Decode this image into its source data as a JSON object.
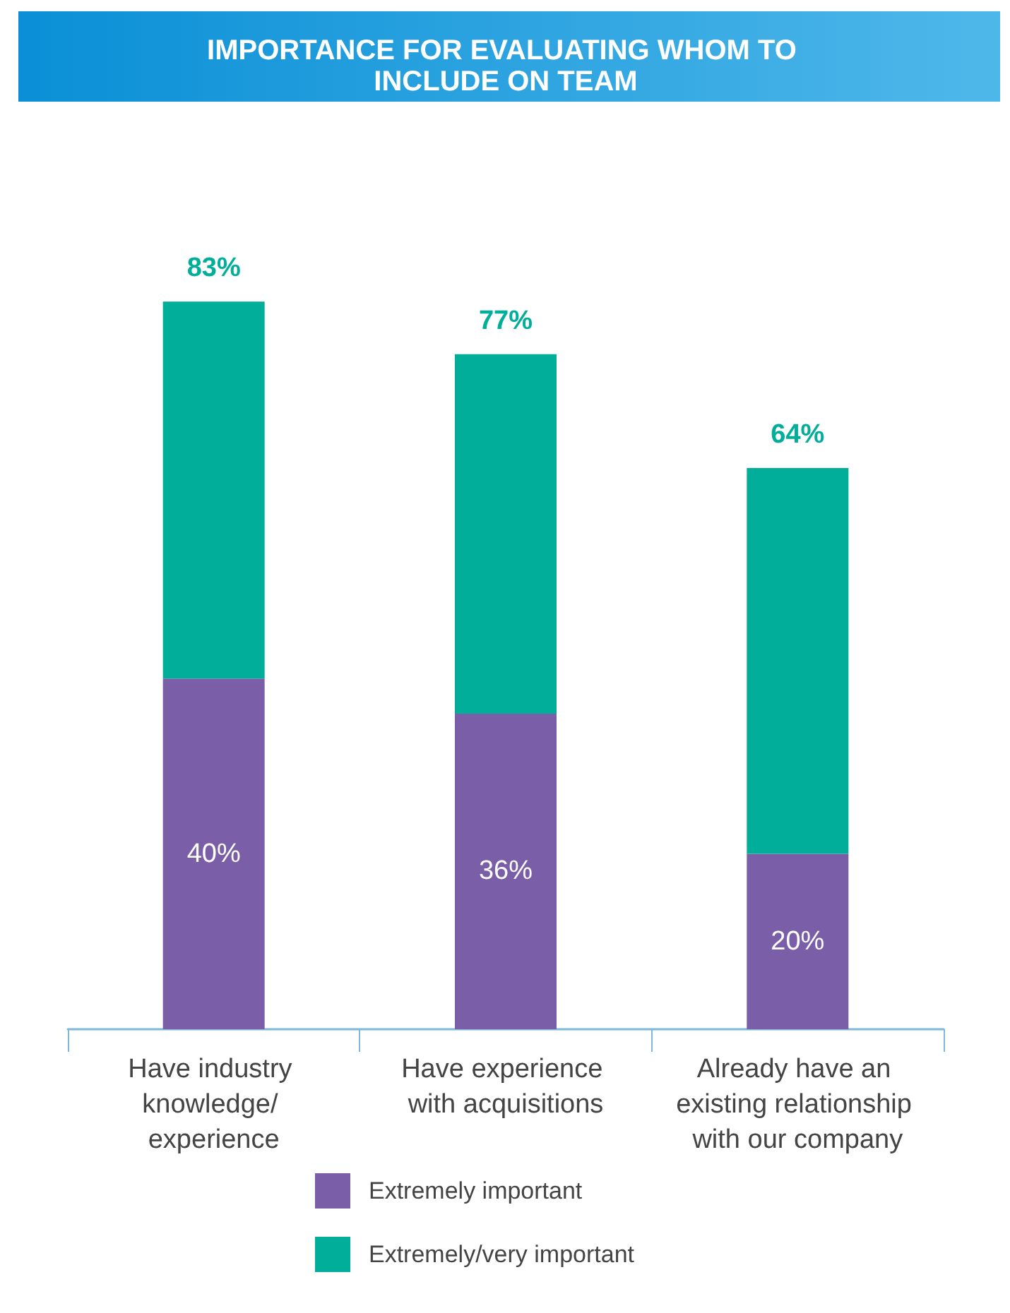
{
  "chart_data": {
    "type": "bar",
    "title": "IMPORTANCE FOR EVALUATING WHOM TO INCLUDE ON TEAM",
    "categories": [
      "Have industry knowledge/ experience",
      "Have experience with acquisitions",
      "Already have an existing relationship with our company"
    ],
    "stacked": true,
    "legend": "bottom",
    "tick_labels": "x",
    "series": [
      {
        "name": "Extremely important",
        "color": "#7a5ea8",
        "values": [
          40,
          36,
          20
        ],
        "value_labels": [
          "40%",
          "36%",
          "20%"
        ]
      },
      {
        "name": "Extremely/very important",
        "color": "#00ae9a",
        "values": [
          43,
          41,
          44
        ]
      }
    ],
    "totals": [
      "83%",
      "77%",
      "64%"
    ]
  }
}
